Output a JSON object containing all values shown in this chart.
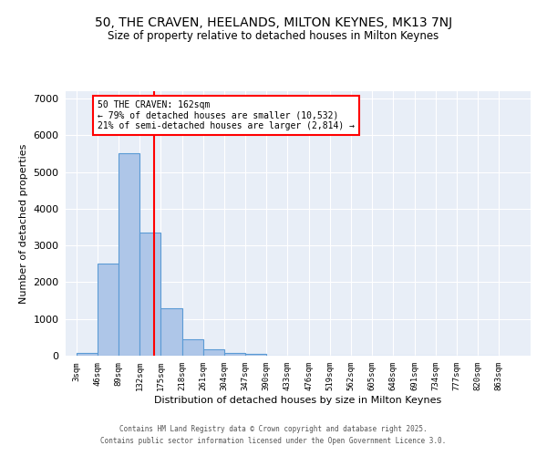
{
  "title1": "50, THE CRAVEN, HEELANDS, MILTON KEYNES, MK13 7NJ",
  "title2": "Size of property relative to detached houses in Milton Keynes",
  "xlabel": "Distribution of detached houses by size in Milton Keynes",
  "ylabel": "Number of detached properties",
  "bin_labels": [
    "3sqm",
    "46sqm",
    "89sqm",
    "132sqm",
    "175sqm",
    "218sqm",
    "261sqm",
    "304sqm",
    "347sqm",
    "390sqm",
    "433sqm",
    "476sqm",
    "519sqm",
    "562sqm",
    "605sqm",
    "648sqm",
    "691sqm",
    "734sqm",
    "777sqm",
    "820sqm",
    "863sqm"
  ],
  "bin_edges": [
    3,
    46,
    89,
    132,
    175,
    218,
    261,
    304,
    347,
    390,
    433,
    476,
    519,
    562,
    605,
    648,
    691,
    734,
    777,
    820,
    863
  ],
  "bar_heights": [
    75,
    2500,
    5500,
    3350,
    1300,
    450,
    175,
    75,
    50,
    0,
    0,
    0,
    0,
    0,
    0,
    0,
    0,
    0,
    0,
    0
  ],
  "bar_color": "#aec6e8",
  "bar_edgecolor": "#5b9bd5",
  "bar_linewidth": 0.8,
  "vline_x": 162,
  "vline_color": "red",
  "vline_linewidth": 1.5,
  "annotation_title": "50 THE CRAVEN: 162sqm",
  "annotation_line2": "← 79% of detached houses are smaller (10,532)",
  "annotation_line3": "21% of semi-detached houses are larger (2,814) →",
  "ylim": [
    0,
    7200
  ],
  "yticks": [
    0,
    1000,
    2000,
    3000,
    4000,
    5000,
    6000,
    7000
  ],
  "background_color": "#e8eef7",
  "grid_color": "#ffffff",
  "footer1": "Contains HM Land Registry data © Crown copyright and database right 2025.",
  "footer2": "Contains public sector information licensed under the Open Government Licence 3.0."
}
